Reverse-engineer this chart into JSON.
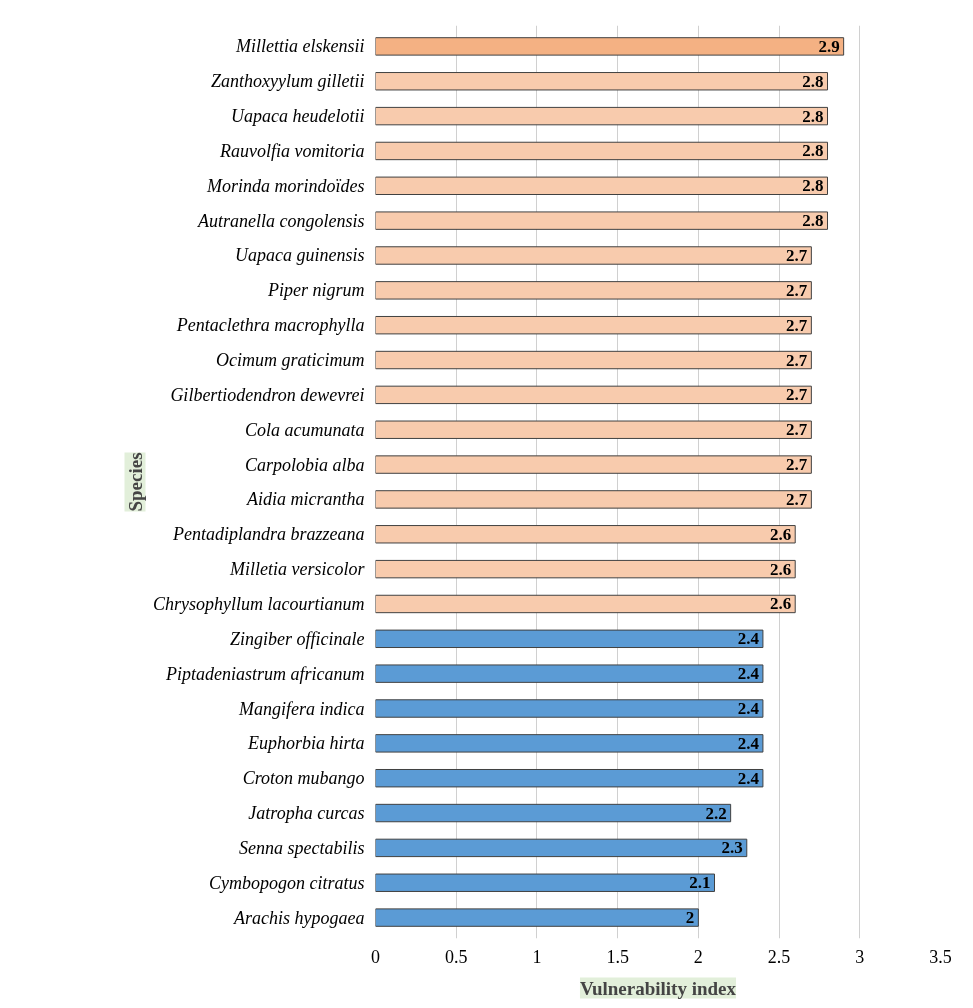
{
  "chart_data": {
    "type": "bar",
    "orientation": "horizontal",
    "xlabel": "Vulnerability index",
    "ylabel": "Species",
    "categories": [
      "Millettia elskensii",
      "Zanthoxyylum gilletii",
      "Uapaca heudelotii",
      "Rauvolfia vomitoria",
      "Morinda morindoïdes",
      "Autranella congolensis",
      "Uapaca guinensis",
      "Piper nigrum",
      "Pentaclethra macrophylla",
      "Ocimum graticimum",
      "Gilbertiodendron dewevrei",
      "Cola acumunata",
      "Carpolobia alba",
      "Aidia micrantha",
      "Pentadiplandra brazzeana",
      "Milletia versicolor",
      "Chrysophyllum lacourtianum",
      "Zingiber officinale",
      "Piptadeniastrum africanum",
      "Mangifera indica",
      "Euphorbia hirta",
      "Croton mubango",
      "Jatropha curcas",
      "Senna spectabilis",
      "Cymbopogon citratus",
      "Arachis hypogaea"
    ],
    "values": [
      2.9,
      2.8,
      2.8,
      2.8,
      2.8,
      2.8,
      2.7,
      2.7,
      2.7,
      2.7,
      2.7,
      2.7,
      2.7,
      2.7,
      2.6,
      2.6,
      2.6,
      2.4,
      2.4,
      2.4,
      2.4,
      2.4,
      2.2,
      2.3,
      2.1,
      2
    ],
    "colors": [
      "#f4b183",
      "#f8cbad",
      "#f8cbad",
      "#f8cbad",
      "#f8cbad",
      "#f8cbad",
      "#f8cbad",
      "#f8cbad",
      "#f8cbad",
      "#f8cbad",
      "#f8cbad",
      "#f8cbad",
      "#f8cbad",
      "#f8cbad",
      "#f8cbad",
      "#f8cbad",
      "#f8cbad",
      "#5b9bd5",
      "#5b9bd5",
      "#5b9bd5",
      "#5b9bd5",
      "#5b9bd5",
      "#5b9bd5",
      "#5b9bd5",
      "#5b9bd5",
      "#5b9bd5"
    ],
    "xlim": [
      0,
      3.5
    ],
    "xticks": [
      0,
      0.5,
      1,
      1.5,
      2,
      2.5,
      3,
      3.5
    ],
    "grid": "x",
    "data_labels": true
  }
}
